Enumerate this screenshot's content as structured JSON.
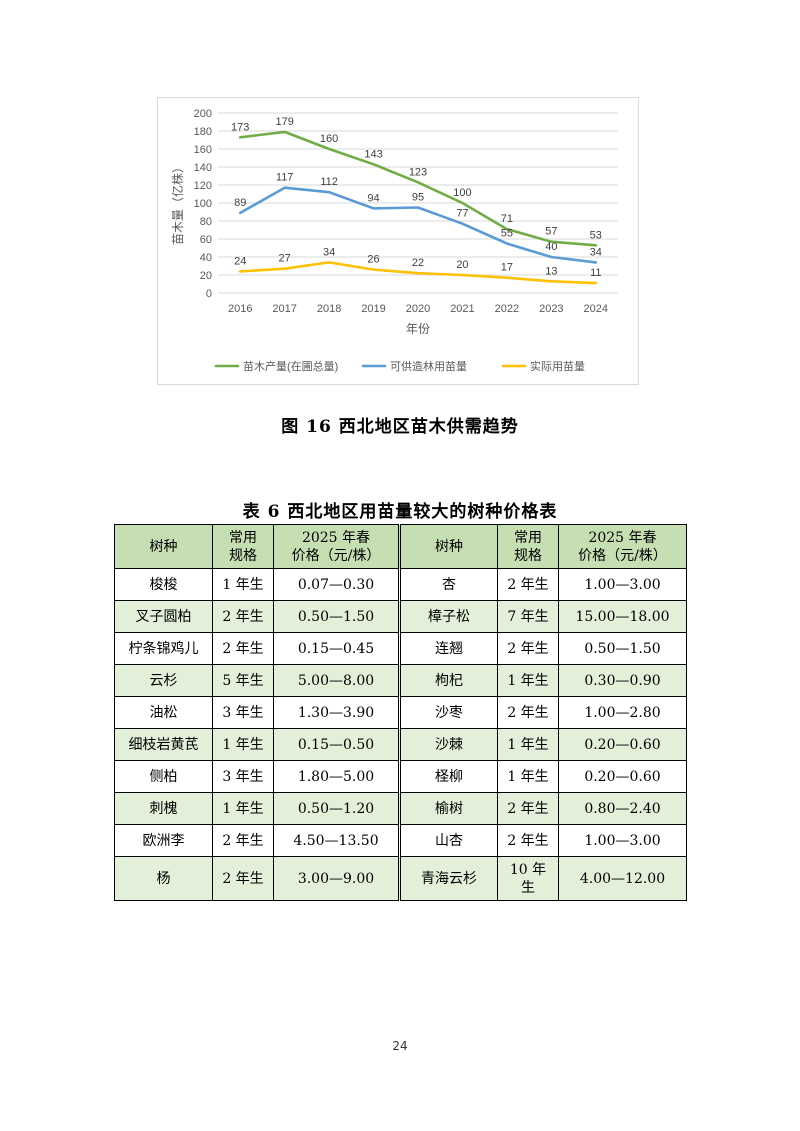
{
  "chart_data": {
    "type": "line",
    "ylabel": "苗木量（亿株）",
    "xlabel": "年份",
    "x": [
      "2016",
      "2017",
      "2018",
      "2019",
      "2020",
      "2021",
      "2022",
      "2023",
      "2024"
    ],
    "ylim": [
      0,
      200
    ],
    "yticks": [
      0,
      20,
      40,
      60,
      80,
      100,
      120,
      140,
      160,
      180,
      200
    ],
    "grid": true,
    "legend": "bottom",
    "series": [
      {
        "name": "苗木产量(在圃总量)",
        "color": "#70ad47",
        "values": [
          173,
          179,
          160,
          143,
          123,
          100,
          71,
          57,
          53
        ]
      },
      {
        "name": "可供造林用苗量",
        "color": "#5b9bd5",
        "values": [
          89,
          117,
          112,
          94,
          95,
          77,
          55,
          40,
          34
        ]
      },
      {
        "name": "实际用苗量",
        "color": "#ffc000",
        "values": [
          24,
          27,
          34,
          26,
          22,
          20,
          17,
          13,
          11
        ]
      }
    ]
  },
  "figure_caption": "图 16  西北地区苗木供需趋势",
  "table_caption": "表 6  西北地区用苗量较大的树种价格表",
  "table": {
    "headers": {
      "species": "树种",
      "spec_line1": "常用",
      "spec_line2": "规格",
      "price_line1": "2025 年春",
      "price_line2": "价格（元/株）"
    },
    "rows": [
      {
        "s1": "梭梭",
        "g1": "1 年生",
        "p1": "0.07—0.30",
        "s2": "杏",
        "g2": "2 年生",
        "p2": "1.00—3.00"
      },
      {
        "s1": "叉子圆柏",
        "g1": "2 年生",
        "p1": "0.50—1.50",
        "s2": "樟子松",
        "g2": "7 年生",
        "p2": "15.00—18.00"
      },
      {
        "s1": "柠条锦鸡儿",
        "g1": "2 年生",
        "p1": "0.15—0.45",
        "s2": "连翘",
        "g2": "2 年生",
        "p2": "0.50—1.50"
      },
      {
        "s1": "云杉",
        "g1": "5 年生",
        "p1": "5.00—8.00",
        "s2": "枸杞",
        "g2": "1 年生",
        "p2": "0.30—0.90"
      },
      {
        "s1": "油松",
        "g1": "3 年生",
        "p1": "1.30—3.90",
        "s2": "沙枣",
        "g2": "2 年生",
        "p2": "1.00—2.80"
      },
      {
        "s1": "细枝岩黄芪",
        "g1": "1 年生",
        "p1": "0.15—0.50",
        "s2": "沙棘",
        "g2": "1 年生",
        "p2": "0.20—0.60"
      },
      {
        "s1": "侧柏",
        "g1": "3 年生",
        "p1": "1.80—5.00",
        "s2": "柽柳",
        "g2": "1 年生",
        "p2": "0.20—0.60"
      },
      {
        "s1": "刺槐",
        "g1": "1 年生",
        "p1": "0.50—1.20",
        "s2": "榆树",
        "g2": "2 年生",
        "p2": "0.80—2.40"
      },
      {
        "s1": "欧洲李",
        "g1": "2 年生",
        "p1": "4.50—13.50",
        "s2": "山杏",
        "g2": "2 年生",
        "p2": "1.00—3.00"
      },
      {
        "s1": "杨",
        "g1": "2 年生",
        "p1": "3.00—9.00",
        "s2": "青海云杉",
        "g2": "10 年生",
        "p2": "4.00—12.00"
      }
    ]
  },
  "page_number": "24"
}
